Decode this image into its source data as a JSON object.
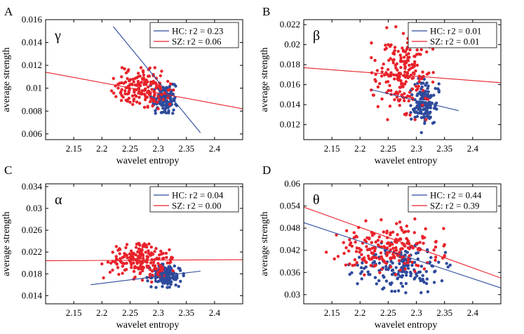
{
  "chart_data": [
    {
      "type": "scatter",
      "panel_letter": "A",
      "band": "γ",
      "xlabel": "wavelet entropy",
      "ylabel": "average strength",
      "xlim": [
        2.1,
        2.45
      ],
      "ylim": [
        0.0055,
        0.016
      ],
      "xticks": [
        "2.15",
        "2.2",
        "2.25",
        "2.3",
        "2.35",
        "2.4"
      ],
      "yticks": [
        {
          "value": 0.006,
          "label": "0.006"
        },
        {
          "value": 0.008,
          "label": "0.008"
        },
        {
          "value": 0.01,
          "label": "0.01"
        },
        {
          "value": 0.012,
          "label": "0.012"
        },
        {
          "value": 0.014,
          "label": "0.014"
        },
        {
          "value": 0.016,
          "label": "0.016"
        }
      ],
      "legend": {
        "position": "top-right"
      },
      "series": [
        {
          "name": "HC",
          "label": "HC: r",
          "r2": "2 = 0.23",
          "color": "#2e4a9c",
          "cloud": {
            "x": [
              2.285,
              2.335
            ],
            "y": [
              0.0078,
              0.0105
            ],
            "n": 140
          },
          "fit": {
            "x": [
              2.22,
              2.375
            ],
            "y": [
              0.0154,
              0.0061
            ]
          }
        },
        {
          "name": "SZ",
          "label": "SZ: r",
          "r2": "2 = 0.06",
          "color": "#e8222a",
          "cloud": {
            "x": [
              2.21,
              2.33
            ],
            "y": [
              0.0082,
              0.0118
            ],
            "n": 170
          },
          "fit": {
            "x": [
              2.1,
              2.45
            ],
            "y": [
              0.0114,
              0.0082
            ]
          }
        }
      ]
    },
    {
      "type": "scatter",
      "panel_letter": "B",
      "band": "β",
      "xlabel": "wavelet entropy",
      "ylabel": "average strength",
      "xlim": [
        2.1,
        2.45
      ],
      "ylim": [
        0.0105,
        0.0225
      ],
      "xticks": [
        "2.15",
        "2.2",
        "2.25",
        "2.3",
        "2.35",
        "2.4"
      ],
      "yticks": [
        {
          "value": 0.012,
          "label": "0.012"
        },
        {
          "value": 0.014,
          "label": "0.014"
        },
        {
          "value": 0.016,
          "label": "0.016"
        },
        {
          "value": 0.018,
          "label": "0.018"
        },
        {
          "value": 0.02,
          "label": "0.02"
        },
        {
          "value": 0.022,
          "label": "0.022"
        }
      ],
      "legend": {
        "position": "top-right"
      },
      "series": [
        {
          "name": "HC",
          "label": "HC: r",
          "r2": "2 = 0.01",
          "color": "#2e4a9c",
          "cloud": {
            "x": [
              2.29,
              2.34
            ],
            "y": [
              0.0112,
              0.017
            ],
            "n": 150
          },
          "fit": {
            "x": [
              2.22,
              2.375
            ],
            "y": [
              0.0155,
              0.0134
            ]
          }
        },
        {
          "name": "SZ",
          "label": "SZ: r",
          "r2": "2 = 0.01",
          "color": "#e8222a",
          "cloud": {
            "x": [
              2.22,
              2.33
            ],
            "y": [
              0.0125,
              0.0218
            ],
            "n": 200
          },
          "fit": {
            "x": [
              2.1,
              2.45
            ],
            "y": [
              0.0177,
              0.0162
            ]
          }
        }
      ]
    },
    {
      "type": "scatter",
      "panel_letter": "C",
      "band": "α",
      "xlabel": "wavelet entropy",
      "ylabel": "average strength",
      "xlim": [
        2.1,
        2.45
      ],
      "ylim": [
        0.0125,
        0.0345
      ],
      "xticks": [
        "2.15",
        "2.2",
        "2.25",
        "2.3",
        "2.35",
        "2.4"
      ],
      "yticks": [
        {
          "value": 0.014,
          "label": "0.014"
        },
        {
          "value": 0.018,
          "label": "0.018"
        },
        {
          "value": 0.022,
          "label": "0.022"
        },
        {
          "value": 0.026,
          "label": "0.026"
        },
        {
          "value": 0.03,
          "label": "0.03"
        },
        {
          "value": 0.034,
          "label": "0.034"
        }
      ],
      "legend": {
        "position": "top-right"
      },
      "series": [
        {
          "name": "HC",
          "label": "HC: r",
          "r2": "2 = 0.04",
          "color": "#2e4a9c",
          "cloud": {
            "x": [
              2.28,
              2.345
            ],
            "y": [
              0.0155,
              0.0198
            ],
            "n": 160
          },
          "fit": {
            "x": [
              2.18,
              2.375
            ],
            "y": [
              0.016,
              0.0185
            ]
          }
        },
        {
          "name": "SZ",
          "label": "SZ: r",
          "r2": "2 = 0.00",
          "color": "#e8222a",
          "cloud": {
            "x": [
              2.2,
              2.335
            ],
            "y": [
              0.0165,
              0.0245
            ],
            "n": 190
          },
          "fit": {
            "x": [
              2.1,
              2.45
            ],
            "y": [
              0.0204,
              0.0206
            ]
          }
        }
      ]
    },
    {
      "type": "scatter",
      "panel_letter": "D",
      "band": "θ",
      "xlabel": "wavelet entropy",
      "ylabel": "average strength",
      "xlim": [
        2.1,
        2.45
      ],
      "ylim": [
        0.0275,
        0.06
      ],
      "xticks": [
        "2.15",
        "2.2",
        "2.25",
        "2.3",
        "2.35",
        "2.4"
      ],
      "yticks": [
        {
          "value": 0.03,
          "label": "0.03"
        },
        {
          "value": 0.036,
          "label": "0.036"
        },
        {
          "value": 0.042,
          "label": "0.042"
        },
        {
          "value": 0.048,
          "label": "0.048"
        },
        {
          "value": 0.054,
          "label": "0.054"
        },
        {
          "value": 0.06,
          "label": "0.06"
        }
      ],
      "legend": {
        "position": "top-right"
      },
      "series": [
        {
          "name": "HC",
          "label": "HC: r",
          "r2": "2 = 0.44",
          "color": "#2e4a9c",
          "cloud": {
            "x": [
              2.18,
              2.36
            ],
            "y": [
              0.0305,
              0.044
            ],
            "n": 170
          },
          "fit": {
            "x": [
              2.1,
              2.45
            ],
            "y": [
              0.0495,
              0.0318
            ]
          }
        },
        {
          "name": "SZ",
          "label": "SZ: r",
          "r2": "2 = 0.39",
          "color": "#e8222a",
          "cloud": {
            "x": [
              2.14,
              2.35
            ],
            "y": [
              0.0345,
              0.0505
            ],
            "n": 200
          },
          "fit": {
            "x": [
              2.1,
              2.45
            ],
            "y": [
              0.0537,
              0.0345
            ]
          }
        }
      ]
    }
  ]
}
